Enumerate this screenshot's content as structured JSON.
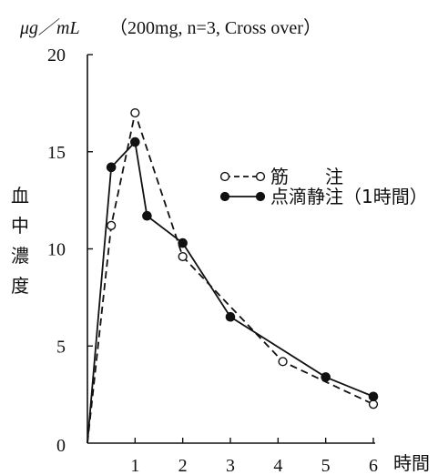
{
  "chart_data": {
    "type": "line",
    "unit_label": "μg／mL",
    "condition": "（200mg, n=3, Cross over）",
    "ylabel": [
      "血",
      "中",
      "濃",
      "度"
    ],
    "xlabel": "時間",
    "xlim": [
      0,
      6
    ],
    "ylim": [
      0,
      20
    ],
    "x_ticks": [
      1,
      2,
      3,
      4,
      5,
      6
    ],
    "y_ticks": [
      0,
      5,
      10,
      15,
      20
    ],
    "grid": false,
    "legend_position": "top-right",
    "series": [
      {
        "name": "筋　　注",
        "line_style": "dashed",
        "marker": "open-circle",
        "points": [
          [
            0,
            0
          ],
          [
            0.5,
            11.2
          ],
          [
            1.0,
            17.0
          ],
          [
            2.0,
            9.6
          ],
          [
            4.1,
            4.2
          ],
          [
            6.0,
            2.0
          ]
        ]
      },
      {
        "name": "点滴静注（1時間）",
        "line_style": "solid",
        "marker": "filled-circle",
        "points": [
          [
            0,
            0
          ],
          [
            0.5,
            14.2
          ],
          [
            1.0,
            15.5
          ],
          [
            1.25,
            11.7
          ],
          [
            2.0,
            10.3
          ],
          [
            3.0,
            6.5
          ],
          [
            5.0,
            3.4
          ],
          [
            6.0,
            2.4
          ]
        ]
      }
    ]
  }
}
